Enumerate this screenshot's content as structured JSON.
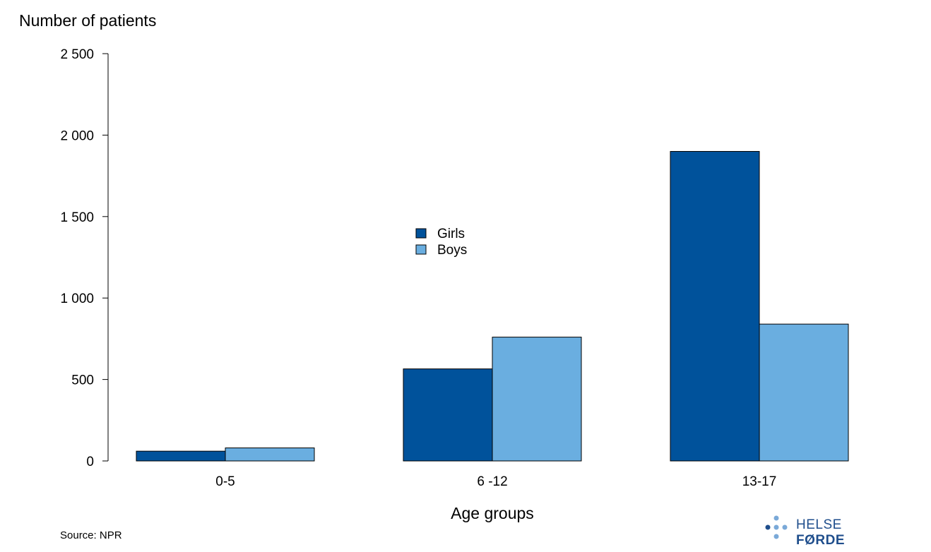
{
  "chart_data": {
    "type": "bar",
    "title": "",
    "ylabel": "Number of patients",
    "xlabel": "Age groups",
    "categories": [
      "0-5",
      "6 -12",
      "13-17"
    ],
    "series": [
      {
        "name": "Girls",
        "values": [
          60,
          565,
          1900
        ],
        "color": "#00529b"
      },
      {
        "name": "Boys",
        "values": [
          80,
          760,
          840
        ],
        "color": "#6aaee0"
      }
    ],
    "ylim": [
      0,
      2500
    ],
    "yticks": [
      0,
      500,
      1000,
      1500,
      2000,
      2500
    ],
    "ytick_labels": [
      "0",
      "500",
      "1 000",
      "1 500",
      "2 000",
      "2 500"
    ],
    "legend_position": "center",
    "grid": false
  },
  "footer": {
    "source": "Source: NPR",
    "logo_text_light": "HELSE ",
    "logo_text_bold": "FØRDE"
  },
  "colors": {
    "logo": "#1f4e8c",
    "logo_dots": "#7aa9d8"
  },
  "icons": {
    "logo": "helse-forde-logo-icon"
  }
}
